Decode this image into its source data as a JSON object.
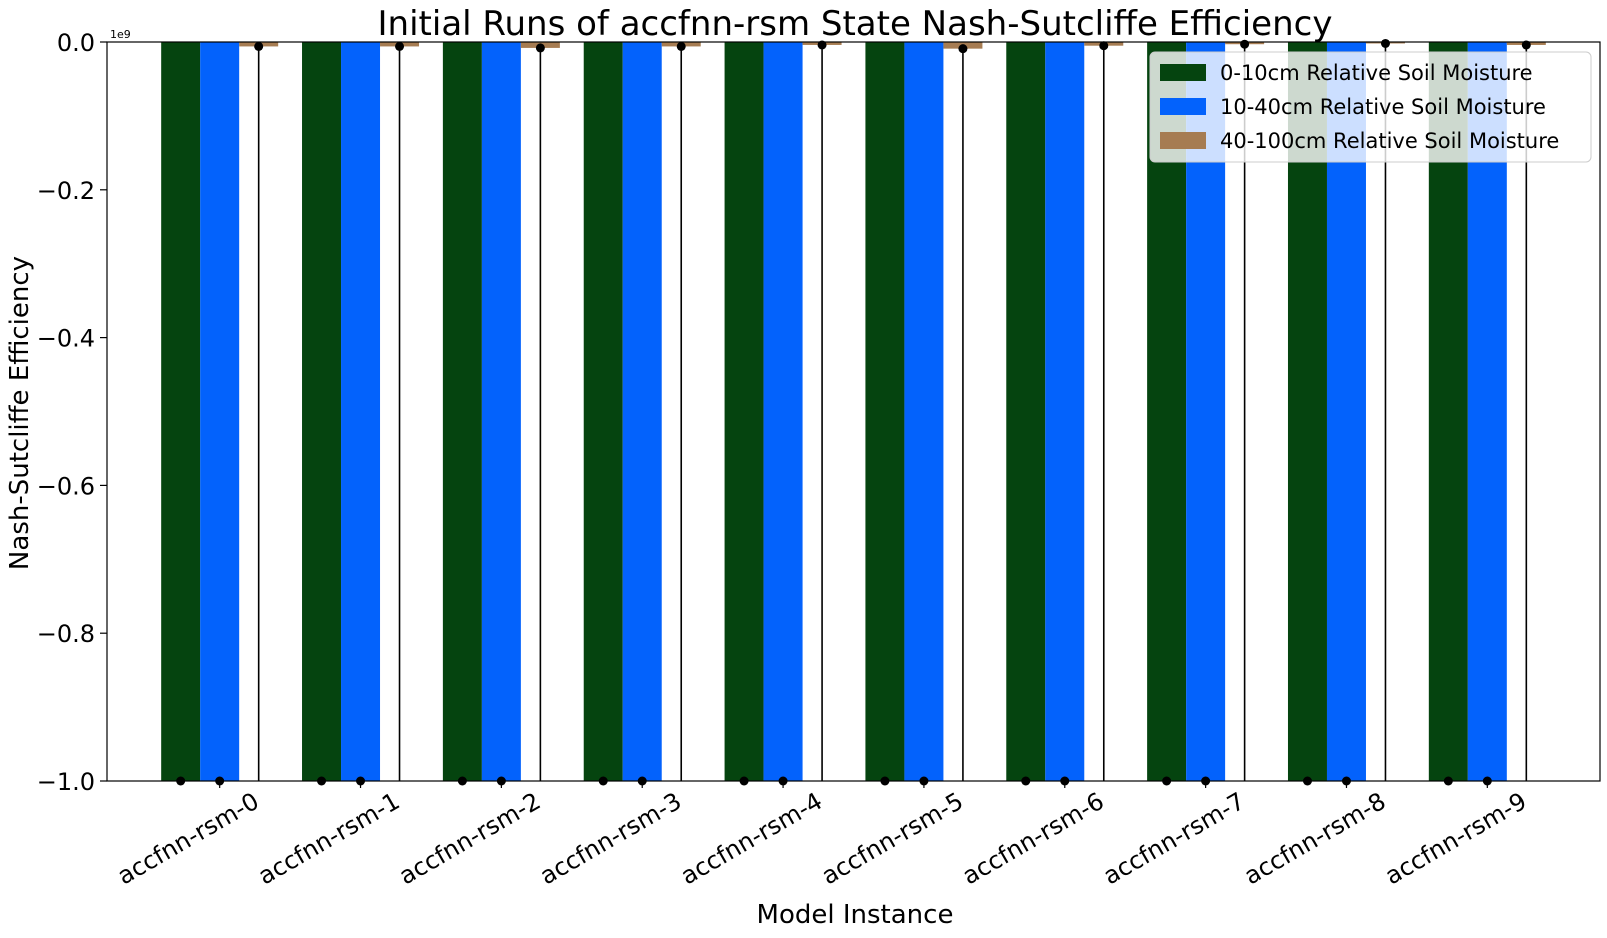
{
  "chart_data": {
    "type": "bar",
    "title": "Initial Runs of accfnn-rsm State Nash-Sutcliffe Efficiency",
    "xlabel": "Model Instance",
    "ylabel": "Nash-Sutcliffe Efficiency",
    "y_offset_label": "1e9",
    "ylim": [
      -1.0,
      0.0
    ],
    "yticks": [
      "0.0",
      "−0.2",
      "−0.4",
      "−0.6",
      "−0.8",
      "−1.0"
    ],
    "ytick_values": [
      0.0,
      -0.2,
      -0.4,
      -0.6,
      -0.8,
      -1.0
    ],
    "categories": [
      "accfnn-rsm-0",
      "accfnn-rsm-1",
      "accfnn-rsm-2",
      "accfnn-rsm-3",
      "accfnn-rsm-4",
      "accfnn-rsm-5",
      "accfnn-rsm-6",
      "accfnn-rsm-7",
      "accfnn-rsm-8",
      "accfnn-rsm-9"
    ],
    "series": [
      {
        "name": "0-10cm Relative Soil Moisture",
        "color": "#05440f",
        "values": [
          -1.0,
          -1.0,
          -1.0,
          -1.0,
          -1.0,
          -1.0,
          -1.0,
          -1.0,
          -1.0,
          -1.0
        ],
        "error_low": [
          -1.0,
          -1.0,
          -1.0,
          -1.0,
          -1.0,
          -1.0,
          -1.0,
          -1.0,
          -1.0,
          -1.0
        ]
      },
      {
        "name": "10-40cm Relative Soil Moisture",
        "color": "#0362fc",
        "values": [
          -1.0,
          -1.0,
          -1.0,
          -1.0,
          -1.0,
          -1.0,
          -1.0,
          -1.0,
          -1.0,
          -1.0
        ],
        "error_low": [
          -1.0,
          -1.0,
          -1.0,
          -1.0,
          -1.0,
          -1.0,
          -1.0,
          -1.0,
          -1.0,
          -1.0
        ]
      },
      {
        "name": "40-100cm Relative Soil Moisture",
        "color": "#a67c52",
        "values": [
          -0.006,
          -0.006,
          -0.008,
          -0.006,
          -0.004,
          -0.009,
          -0.005,
          -0.003,
          -0.002,
          -0.004
        ],
        "error_low": [
          -1.0,
          -1.0,
          -1.0,
          -1.0,
          -1.0,
          -1.0,
          -1.0,
          -1.0,
          -1.0,
          -1.0
        ]
      }
    ],
    "grid": false,
    "legend_position": "top-right"
  }
}
